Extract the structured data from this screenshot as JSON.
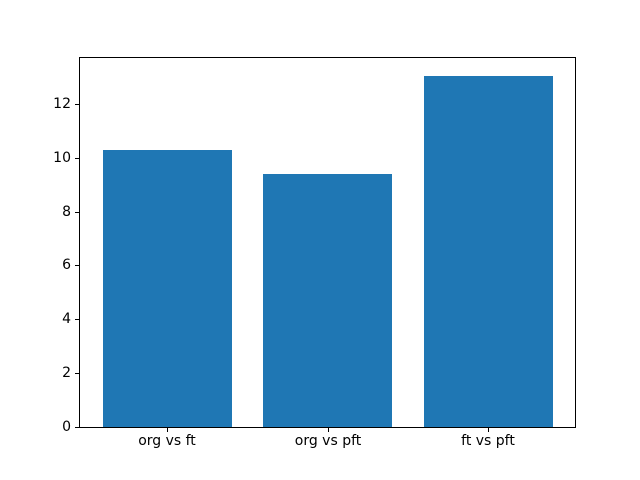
{
  "chart_data": {
    "type": "bar",
    "categories": [
      "org vs ft",
      "org vs pft",
      "ft vs pft"
    ],
    "values": [
      10.3,
      9.4,
      13.05
    ],
    "title": "",
    "xlabel": "",
    "ylabel": "",
    "ylim": [
      0,
      13.7
    ],
    "yticks": [
      0,
      2,
      4,
      6,
      8,
      10,
      12
    ],
    "grid": false,
    "legend_position": "none",
    "bar_color": "#1f77b4",
    "spine_color": "#000000",
    "background_color": "#ffffff"
  }
}
